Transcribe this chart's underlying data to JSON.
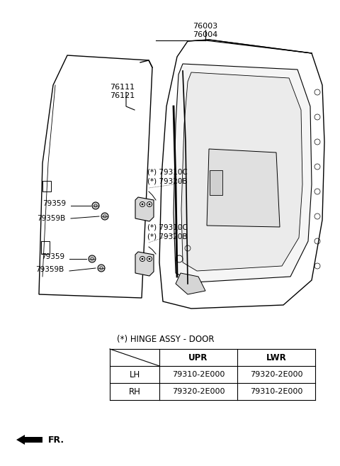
{
  "background_color": "#ffffff",
  "line_color": "#000000",
  "text_color": "#000000",
  "label_76003_76004": "76003\n76004",
  "label_76111_76121": "76111\n76121",
  "label_upper_hinge": "(*) 79310C\n(*) 79320B",
  "label_lower_hinge": "(*) 79310C\n(*) 79320B",
  "label_79359_u": "79359",
  "label_79359B_u": "79359B",
  "label_79359_l": "79359",
  "label_79359B_l": "79359B",
  "table_title": "(*) HINGE ASSY - DOOR",
  "col_headers": [
    "UPR",
    "LWR"
  ],
  "row_labels": [
    "LH",
    "RH"
  ],
  "table_data": [
    [
      "79310-2E000",
      "79320-2E000"
    ],
    [
      "79320-2E000",
      "79310-2E000"
    ]
  ],
  "fr_label": "FR."
}
